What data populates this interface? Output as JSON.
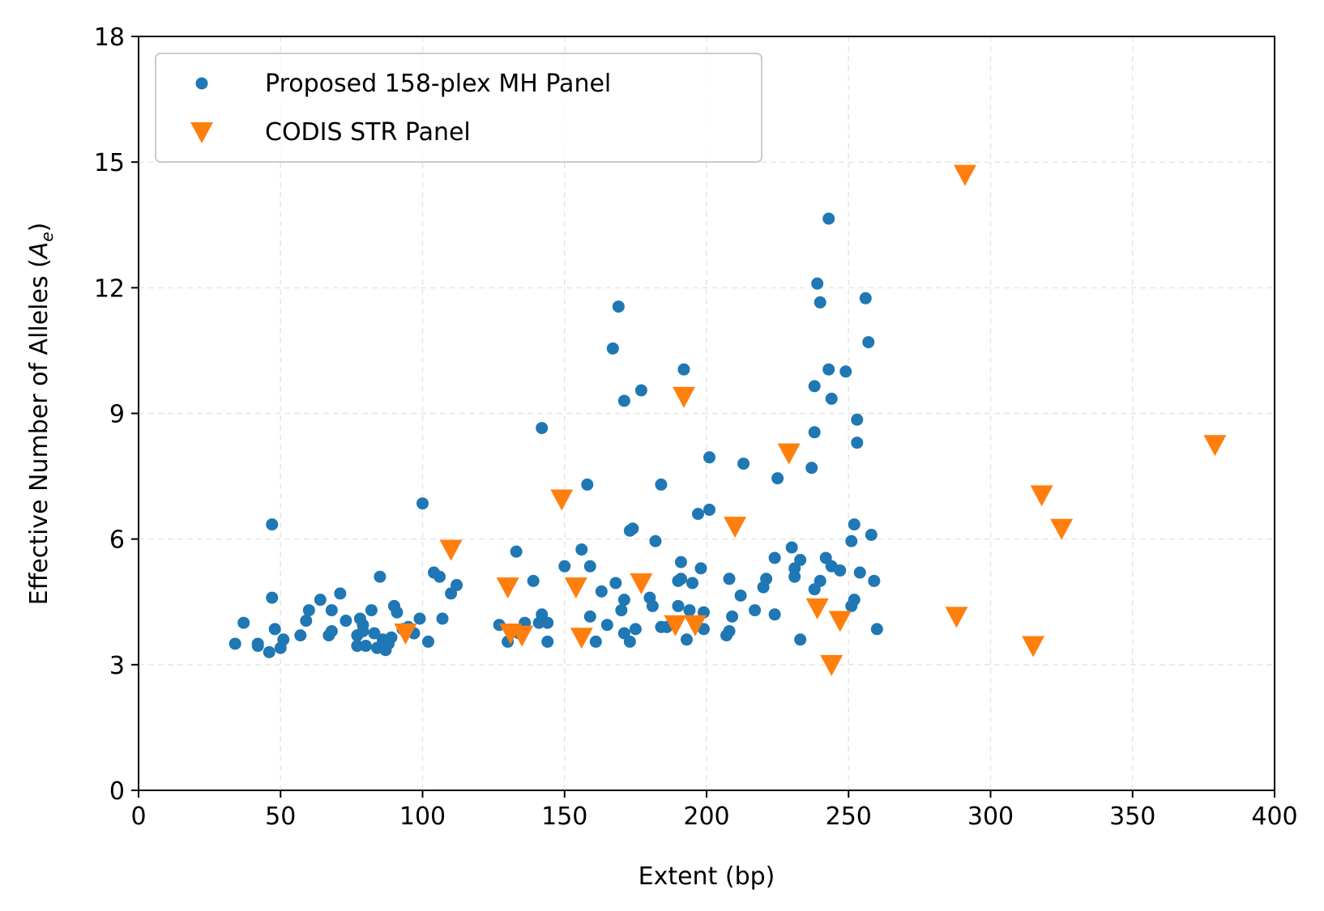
{
  "chart_data": {
    "type": "scatter",
    "xlabel": "Extent (bp)",
    "ylabel": "Effective Number of Alleles (",
    "ylabel_symbol": "A",
    "ylabel_subscript": "e",
    "ylabel_close": ")",
    "xlim": [
      0,
      400
    ],
    "ylim": [
      0,
      18
    ],
    "xticks": [
      0,
      50,
      100,
      150,
      200,
      250,
      300,
      350,
      400
    ],
    "yticks": [
      0,
      3,
      6,
      9,
      12,
      15,
      18
    ],
    "grid": true,
    "legend_position": "upper-left",
    "series": [
      {
        "name": "Proposed 158-plex MH Panel",
        "marker": "circle",
        "color": "#1f77b4",
        "points": [
          [
            34,
            3.5
          ],
          [
            37,
            4.0
          ],
          [
            42,
            3.5
          ],
          [
            42,
            3.45
          ],
          [
            46,
            3.3
          ],
          [
            47,
            6.35
          ],
          [
            47,
            4.6
          ],
          [
            48,
            3.85
          ],
          [
            50,
            3.4
          ],
          [
            51,
            3.6
          ],
          [
            57,
            3.7
          ],
          [
            59,
            4.05
          ],
          [
            60,
            4.3
          ],
          [
            64,
            4.55
          ],
          [
            67,
            3.7
          ],
          [
            68,
            4.3
          ],
          [
            68,
            3.8
          ],
          [
            71,
            4.7
          ],
          [
            73,
            4.05
          ],
          [
            77,
            3.7
          ],
          [
            77,
            3.45
          ],
          [
            78,
            4.1
          ],
          [
            79,
            3.95
          ],
          [
            79,
            3.8
          ],
          [
            80,
            3.45
          ],
          [
            82,
            4.3
          ],
          [
            83,
            3.75
          ],
          [
            84,
            3.4
          ],
          [
            85,
            5.1
          ],
          [
            86,
            3.6
          ],
          [
            87,
            3.35
          ],
          [
            88,
            3.5
          ],
          [
            89,
            3.65
          ],
          [
            90,
            4.4
          ],
          [
            91,
            4.25
          ],
          [
            93,
            3.85
          ],
          [
            95,
            3.9
          ],
          [
            97,
            3.75
          ],
          [
            99,
            4.1
          ],
          [
            100,
            6.85
          ],
          [
            102,
            3.55
          ],
          [
            104,
            5.2
          ],
          [
            106,
            5.1
          ],
          [
            107,
            4.1
          ],
          [
            110,
            4.7
          ],
          [
            112,
            4.9
          ],
          [
            127,
            3.95
          ],
          [
            130,
            3.55
          ],
          [
            133,
            5.7
          ],
          [
            134,
            3.75
          ],
          [
            136,
            4.0
          ],
          [
            139,
            5.0
          ],
          [
            141,
            4.0
          ],
          [
            142,
            4.2
          ],
          [
            142,
            8.65
          ],
          [
            144,
            3.55
          ],
          [
            144,
            4.0
          ],
          [
            150,
            5.35
          ],
          [
            156,
            5.75
          ],
          [
            158,
            7.3
          ],
          [
            159,
            5.35
          ],
          [
            159,
            4.15
          ],
          [
            161,
            3.55
          ],
          [
            163,
            4.75
          ],
          [
            165,
            3.95
          ],
          [
            167,
            10.55
          ],
          [
            168,
            4.95
          ],
          [
            169,
            11.55
          ],
          [
            170,
            4.3
          ],
          [
            171,
            9.3
          ],
          [
            171,
            4.55
          ],
          [
            171,
            3.75
          ],
          [
            173,
            3.55
          ],
          [
            173,
            6.2
          ],
          [
            174,
            6.25
          ],
          [
            175,
            3.85
          ],
          [
            177,
            9.55
          ],
          [
            180,
            4.6
          ],
          [
            181,
            4.4
          ],
          [
            182,
            5.95
          ],
          [
            184,
            7.3
          ],
          [
            184,
            3.9
          ],
          [
            186,
            3.9
          ],
          [
            190,
            5.0
          ],
          [
            190,
            4.4
          ],
          [
            191,
            5.45
          ],
          [
            191,
            5.05
          ],
          [
            192,
            10.05
          ],
          [
            193,
            3.6
          ],
          [
            194,
            4.3
          ],
          [
            195,
            4.95
          ],
          [
            197,
            6.6
          ],
          [
            198,
            5.3
          ],
          [
            199,
            4.25
          ],
          [
            199,
            3.85
          ],
          [
            201,
            7.95
          ],
          [
            201,
            6.7
          ],
          [
            207,
            3.7
          ],
          [
            208,
            3.8
          ],
          [
            208,
            5.05
          ],
          [
            209,
            4.15
          ],
          [
            212,
            4.65
          ],
          [
            213,
            7.8
          ],
          [
            217,
            4.3
          ],
          [
            220,
            4.85
          ],
          [
            221,
            5.05
          ],
          [
            224,
            4.2
          ],
          [
            224,
            5.55
          ],
          [
            225,
            7.45
          ],
          [
            230,
            5.8
          ],
          [
            231,
            5.1
          ],
          [
            231,
            5.3
          ],
          [
            233,
            5.5
          ],
          [
            233,
            3.6
          ],
          [
            237,
            7.7
          ],
          [
            238,
            4.8
          ],
          [
            238,
            8.55
          ],
          [
            238,
            9.65
          ],
          [
            239,
            12.1
          ],
          [
            240,
            11.65
          ],
          [
            240,
            5.0
          ],
          [
            242,
            5.55
          ],
          [
            243,
            10.05
          ],
          [
            243,
            13.65
          ],
          [
            244,
            9.35
          ],
          [
            244,
            5.35
          ],
          [
            247,
            5.25
          ],
          [
            249,
            10.0
          ],
          [
            251,
            5.95
          ],
          [
            251,
            4.4
          ],
          [
            252,
            6.35
          ],
          [
            252,
            4.55
          ],
          [
            253,
            8.85
          ],
          [
            253,
            8.3
          ],
          [
            254,
            5.2
          ],
          [
            256,
            11.75
          ],
          [
            257,
            10.7
          ],
          [
            258,
            6.1
          ],
          [
            259,
            5.0
          ],
          [
            260,
            3.85
          ]
        ]
      },
      {
        "name": "CODIS STR Panel",
        "marker": "triangle-down",
        "color": "#ff7f0e",
        "points": [
          [
            94,
            3.75
          ],
          [
            110,
            5.75
          ],
          [
            130,
            4.85
          ],
          [
            131,
            3.75
          ],
          [
            135,
            3.7
          ],
          [
            149,
            6.95
          ],
          [
            154,
            4.85
          ],
          [
            156,
            3.65
          ],
          [
            177,
            4.95
          ],
          [
            189,
            3.95
          ],
          [
            192,
            9.4
          ],
          [
            196,
            3.95
          ],
          [
            210,
            6.3
          ],
          [
            229,
            8.05
          ],
          [
            239,
            4.35
          ],
          [
            244,
            3.0
          ],
          [
            247,
            4.05
          ],
          [
            288,
            4.15
          ],
          [
            291,
            14.7
          ],
          [
            315,
            3.45
          ],
          [
            318,
            7.05
          ],
          [
            325,
            6.25
          ],
          [
            379,
            8.25
          ]
        ]
      }
    ]
  }
}
